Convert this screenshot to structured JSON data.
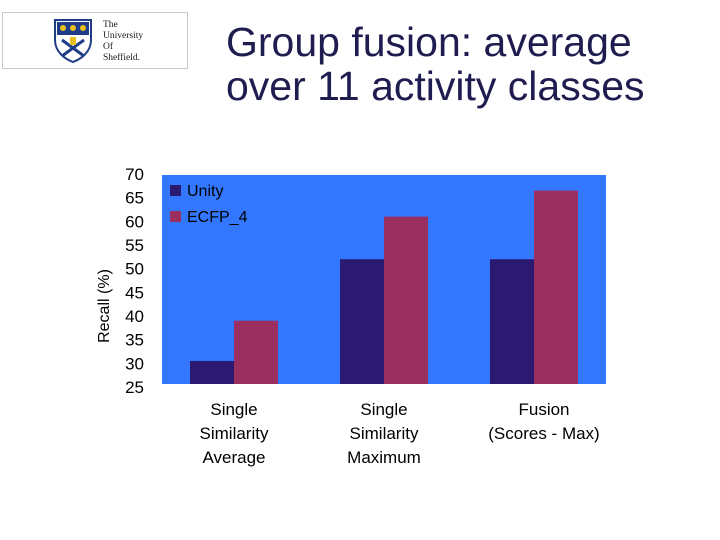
{
  "logo": {
    "lines": [
      "The",
      "University",
      "Of",
      "Sheffield."
    ]
  },
  "title_lines": [
    "Group fusion: average",
    "over 11 activity classes"
  ],
  "chart_data": {
    "type": "bar",
    "ylabel": "Recall (%)",
    "ylim": [
      25,
      70
    ],
    "yticks": [
      70,
      65,
      60,
      55,
      50,
      45,
      40,
      35,
      30,
      25
    ],
    "categories": [
      [
        "Single",
        "Similarity",
        "Average"
      ],
      [
        "Single",
        "Similarity",
        "Maximum"
      ],
      [
        "Fusion",
        "(Scores - Max)"
      ]
    ],
    "series": [
      {
        "name": "Unity",
        "color": "#2a1a72",
        "values": [
          30.5,
          52,
          52
        ]
      },
      {
        "name": "ECFP_4",
        "color": "#9b3060",
        "values": [
          39,
          61,
          66.5
        ]
      }
    ],
    "plot_background": "#3377ff",
    "legend": "top-left",
    "grid": false
  }
}
